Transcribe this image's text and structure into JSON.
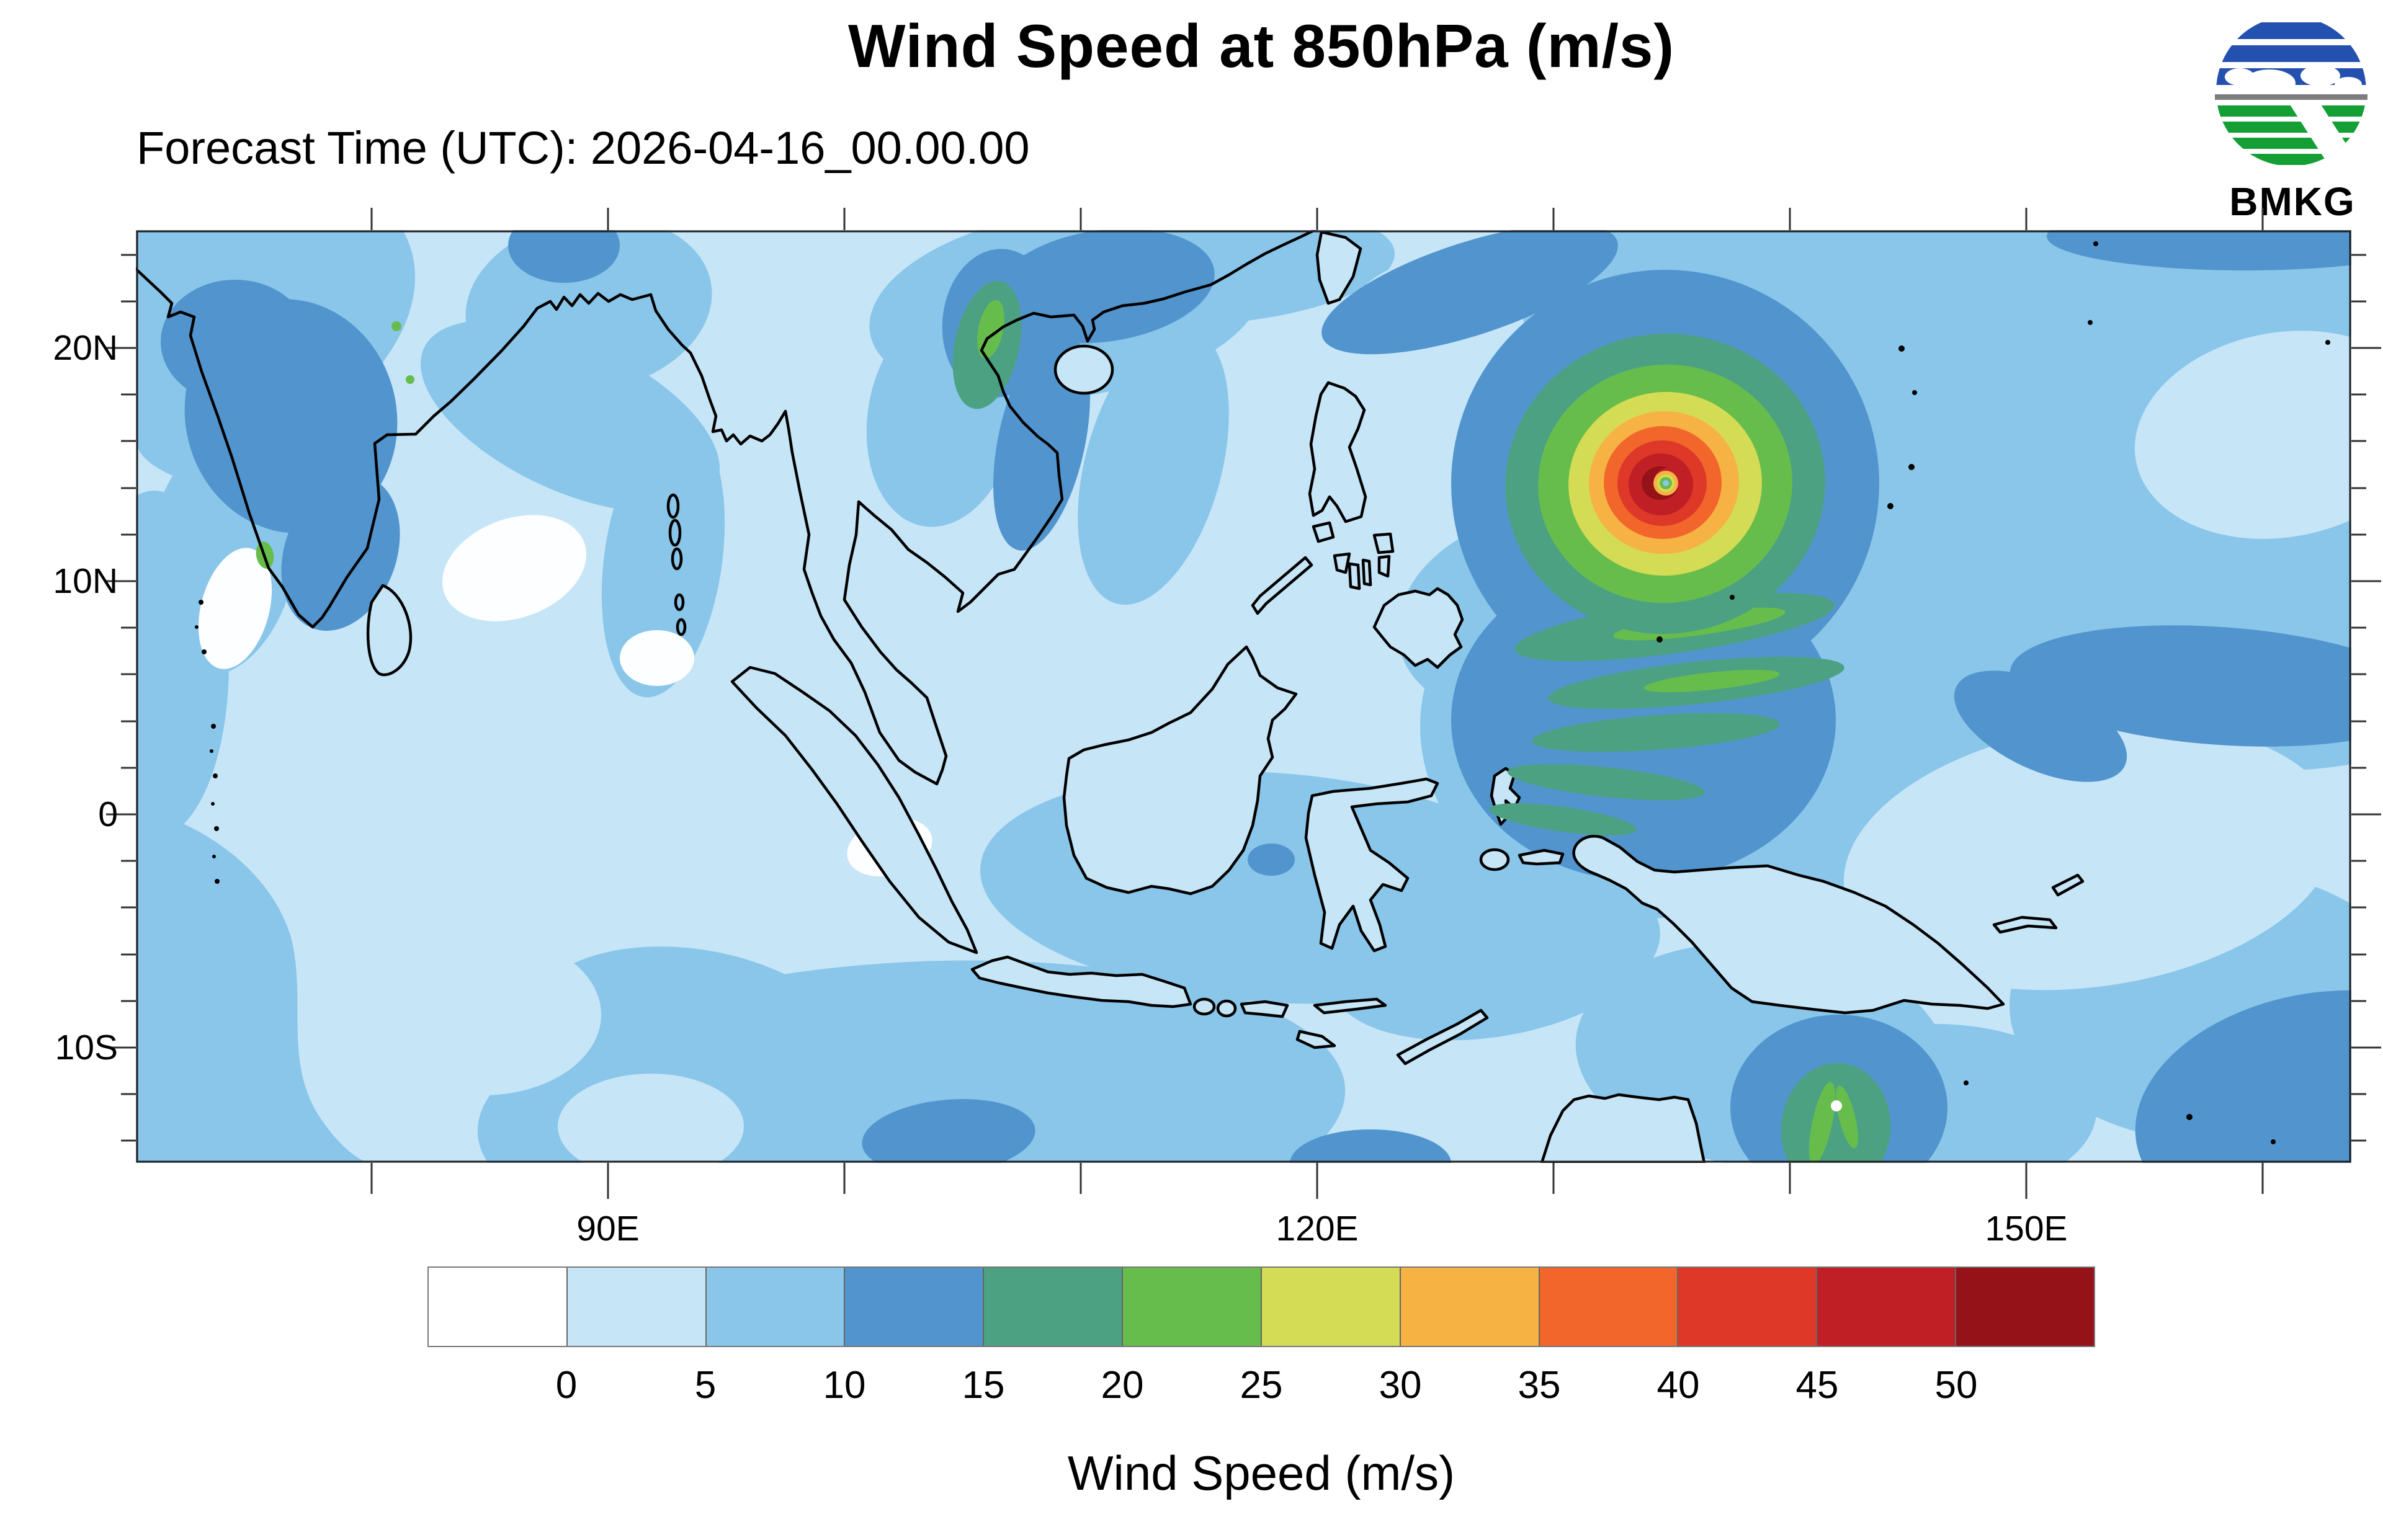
{
  "header": {
    "title": "Wind Speed at 850hPa (m/s)",
    "forecast_label": "Forecast Time (UTC): 2026-04-16_00.00.00",
    "logo_text": "BMKG"
  },
  "axes": {
    "y_labels": [
      "20N",
      "10N",
      "0",
      "10S"
    ],
    "x_labels": [
      "90E",
      "120E",
      "150E"
    ]
  },
  "colorbar": {
    "title": "Wind Speed (m/s)",
    "tick_labels": [
      "0",
      "5",
      "10",
      "15",
      "20",
      "25",
      "30",
      "35",
      "40",
      "45",
      "50"
    ],
    "colors": [
      "#ffffff",
      "#c6e5f7",
      "#89c6ea",
      "#5295ce",
      "#4ca183",
      "#67bd4b",
      "#d4db55",
      "#f6b344",
      "#f2662c",
      "#de3829",
      "#c11f26",
      "#941218"
    ]
  },
  "palette": {
    "frame": "#222222",
    "tick": "#333333",
    "coast": "#000000",
    "wind-white": "#fdfeff",
    "wind0": "#c6e5f7",
    "wind1": "#89c6ea",
    "wind2": "#5295ce",
    "wind3": "#4ca183",
    "wind4": "#67bd4b",
    "wind5": "#d4db55",
    "wind6": "#f6b344",
    "wind7": "#f2662c",
    "wind8": "#de3829",
    "wind9": "#c11f26",
    "wind10": "#941218",
    "logo-blue": "#2450b0",
    "logo-green": "#149f35",
    "logo-gray": "#7d7d7d"
  },
  "chart_data": {
    "type": "heatmap",
    "subtype": "filled-contour-weather-map",
    "title": "Wind Speed at 850hPa (m/s)",
    "forecast_time_utc": "2026-04-16_00.00.00",
    "agency": "BMKG",
    "colorbar_label": "Wind Speed (m/s)",
    "units": "m/s",
    "pressure_level_hpa": 850,
    "x_axis": {
      "tick_labels": [
        "90E",
        "120E",
        "150E"
      ],
      "approx_range_deg_east": [
        70,
        164
      ],
      "tick_interval_deg": 10
    },
    "y_axis": {
      "tick_labels": [
        "20N",
        "10N",
        "0",
        "10S"
      ],
      "approx_range_deg_north": [
        -15,
        25
      ],
      "minor_tick_interval_deg": 2
    },
    "contour_levels_ms": [
      0,
      5,
      10,
      15,
      20,
      25,
      30,
      35,
      40,
      45,
      50
    ],
    "level_colors": [
      "#ffffff",
      "#c6e5f7",
      "#89c6ea",
      "#5295ce",
      "#4ca183",
      "#67bd4b",
      "#d4db55",
      "#f6b344",
      "#f2662c",
      "#de3829",
      "#c11f26",
      "#941218"
    ],
    "legend_position": "bottom",
    "grid": false,
    "features": [
      {
        "name": "tropical-cyclone",
        "approx_lon_e": 134.7,
        "approx_lat_n": 14.2,
        "max_wind_band_ms": "50+"
      },
      {
        "name": "secondary-vortex-cape-york",
        "approx_lon_e": 142,
        "approx_lat_n": -13,
        "max_wind_band_ms": "20-25"
      },
      {
        "name": "ambient-flow",
        "typical_band_ms": "0-15"
      }
    ]
  }
}
